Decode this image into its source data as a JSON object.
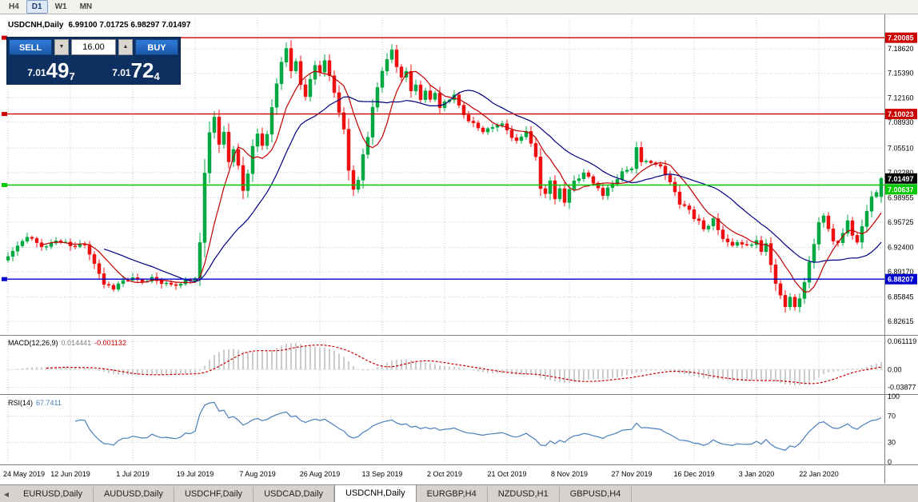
{
  "toolbar": {
    "timeframes": [
      "H4",
      "D1",
      "W1",
      "MN"
    ],
    "active_timeframe": "D1"
  },
  "header": {
    "title": "USDCNH,Daily",
    "ohlc_text": "6.99100 7.01725 6.98297 7.01497"
  },
  "trade_panel": {
    "sell_label": "SELL",
    "buy_label": "BUY",
    "volume": "16.00",
    "sell_price": {
      "small": "7.01",
      "big": "49",
      "sup": "7"
    },
    "buy_price": {
      "small": "7.01",
      "big": "72",
      "sup": "4"
    }
  },
  "icons": {
    "spinner_down": "▼",
    "spinner_up": "▲",
    "tab_scroll_left": "◀"
  },
  "indicators": {
    "macd_name": "MACD(12,26,9)",
    "macd_value": "0.014441",
    "macd_signal": "-0.001132",
    "rsi_name": "RSI(14)",
    "rsi_value": "67.7411"
  },
  "tabs": {
    "items": [
      "EURUSD,Daily",
      "AUDUSD,Daily",
      "USDCHF,Daily",
      "USDCAD,Daily",
      "USDCNH,Daily",
      "EURGBP,H4",
      "NZDUSD,H1",
      "GBPUSD,H4"
    ],
    "active": "USDCNH,Daily"
  },
  "colors": {
    "bull": "#00a843",
    "bear": "#ee1111",
    "ma_fast": "#c00000",
    "ma_slow": "#000080",
    "macd_hist": "#999999",
    "macd_signal": "#cc0000",
    "rsi_line": "#4a7ebb",
    "grid": "#c9c9c9",
    "panel_border": "#808080",
    "level_red": "#cc0000",
    "level_green": "#00c800",
    "level_blue": "#0000cc",
    "current_box": "#000000"
  },
  "chart_data": {
    "type": "candlestick",
    "symbol": "USDCNH",
    "timeframe": "Daily",
    "last_ohlc": {
      "open": 6.991,
      "high": 7.01725,
      "low": 6.98297,
      "close": 7.01497
    },
    "ylim": [
      6.8095,
      7.2275
    ],
    "price_ticks": [
      {
        "v": 7.1862,
        "label": "7.18620"
      },
      {
        "v": 7.1539,
        "label": "7.15390"
      },
      {
        "v": 7.1216,
        "label": "7.12160"
      },
      {
        "v": 7.0893,
        "label": "7.08930"
      },
      {
        "v": 7.0551,
        "label": "7.05510"
      },
      {
        "v": 7.0228,
        "label": "7.02280"
      },
      {
        "v": 6.98955,
        "label": "6.98955"
      },
      {
        "v": 6.95725,
        "label": "6.95725"
      },
      {
        "v": 6.924,
        "label": "6.92400"
      },
      {
        "v": 6.8917,
        "label": "6.89170"
      },
      {
        "v": 6.85845,
        "label": "6.85845"
      },
      {
        "v": 6.82615,
        "label": "6.82615"
      }
    ],
    "levels": [
      {
        "price": 7.20085,
        "label": "7.20085",
        "color": "#cc0000"
      },
      {
        "price": 7.10023,
        "label": "7.10023",
        "color": "#cc0000"
      },
      {
        "price": 7.00637,
        "label": "7.00637",
        "color": "#00c800"
      },
      {
        "price": 6.88207,
        "label": "6.88207",
        "color": "#0000cc"
      }
    ],
    "current_price": {
      "value": 7.01497,
      "label": "7.01497"
    },
    "x_ticks": [
      "24 May 2019",
      "12 Jun 2019",
      "1 Jul 2019",
      "19 Jul 2019",
      "7 Aug 2019",
      "26 Aug 2019",
      "13 Sep 2019",
      "2 Oct 2019",
      "21 Oct 2019",
      "8 Nov 2019",
      "27 Nov 2019",
      "16 Dec 2019",
      "3 Jan 2020",
      "22 Jan 2020"
    ],
    "bars_per_tick": 13,
    "candle_count": 183,
    "noise_seed": 11,
    "noise_amp": 0.0032,
    "clamp_high": 7.198,
    "clamp_low": 6.836,
    "ma": [
      {
        "period": 8,
        "color": "#c00000"
      },
      {
        "period": 21,
        "color": "#000080"
      }
    ],
    "close_waypoints": [
      [
        0,
        6.912
      ],
      [
        2,
        6.926
      ],
      [
        4,
        6.937
      ],
      [
        6,
        6.93
      ],
      [
        8,
        6.925
      ],
      [
        10,
        6.933
      ],
      [
        12,
        6.929
      ],
      [
        14,
        6.924
      ],
      [
        16,
        6.93
      ],
      [
        18,
        6.904
      ],
      [
        20,
        6.876
      ],
      [
        22,
        6.871
      ],
      [
        24,
        6.88
      ],
      [
        26,
        6.882
      ],
      [
        28,
        6.877
      ],
      [
        30,
        6.884
      ],
      [
        32,
        6.879
      ],
      [
        34,
        6.872
      ],
      [
        36,
        6.878
      ],
      [
        38,
        6.881
      ],
      [
        39,
        6.883
      ],
      [
        40,
        6.93
      ],
      [
        41,
        7.02
      ],
      [
        42,
        7.078
      ],
      [
        43,
        7.094
      ],
      [
        44,
        7.058
      ],
      [
        45,
        7.077
      ],
      [
        46,
        7.04
      ],
      [
        47,
        7.056
      ],
      [
        48,
        7.03
      ],
      [
        49,
        6.999
      ],
      [
        50,
        7.021
      ],
      [
        51,
        7.059
      ],
      [
        52,
        7.074
      ],
      [
        53,
        7.057
      ],
      [
        54,
        7.076
      ],
      [
        55,
        7.108
      ],
      [
        56,
        7.143
      ],
      [
        57,
        7.169
      ],
      [
        58,
        7.186
      ],
      [
        59,
        7.154
      ],
      [
        60,
        7.17
      ],
      [
        61,
        7.139
      ],
      [
        62,
        7.124
      ],
      [
        63,
        7.149
      ],
      [
        64,
        7.163
      ],
      [
        65,
        7.156
      ],
      [
        66,
        7.169
      ],
      [
        67,
        7.152
      ],
      [
        68,
        7.128
      ],
      [
        69,
        7.103
      ],
      [
        70,
        7.078
      ],
      [
        71,
        7.028
      ],
      [
        72,
        7.003
      ],
      [
        73,
        7.012
      ],
      [
        74,
        7.046
      ],
      [
        75,
        7.072
      ],
      [
        76,
        7.11
      ],
      [
        77,
        7.136
      ],
      [
        78,
        7.154
      ],
      [
        79,
        7.17
      ],
      [
        80,
        7.184
      ],
      [
        81,
        7.163
      ],
      [
        82,
        7.146
      ],
      [
        83,
        7.156
      ],
      [
        84,
        7.131
      ],
      [
        85,
        7.14
      ],
      [
        86,
        7.119
      ],
      [
        87,
        7.134
      ],
      [
        88,
        7.117
      ],
      [
        89,
        7.129
      ],
      [
        90,
        7.109
      ],
      [
        91,
        7.119
      ],
      [
        93,
        7.124
      ],
      [
        95,
        7.099
      ],
      [
        97,
        7.088
      ],
      [
        99,
        7.074
      ],
      [
        101,
        7.082
      ],
      [
        103,
        7.087
      ],
      [
        104,
        7.079
      ],
      [
        106,
        7.064
      ],
      [
        108,
        7.074
      ],
      [
        110,
        7.046
      ],
      [
        111,
        7.004
      ],
      [
        112,
        6.994
      ],
      [
        113,
        7.009
      ],
      [
        114,
        6.989
      ],
      [
        115,
        6.999
      ],
      [
        116,
        6.984
      ],
      [
        117,
        6.999
      ],
      [
        118,
        7.011
      ],
      [
        120,
        7.024
      ],
      [
        122,
        7.009
      ],
      [
        124,
        6.994
      ],
      [
        126,
        7.009
      ],
      [
        128,
        7.024
      ],
      [
        130,
        7.03
      ],
      [
        131,
        7.054
      ],
      [
        132,
        7.034
      ],
      [
        134,
        7.039
      ],
      [
        136,
        7.029
      ],
      [
        138,
        7.009
      ],
      [
        140,
        6.984
      ],
      [
        142,
        6.974
      ],
      [
        143,
        6.964
      ],
      [
        145,
        6.951
      ],
      [
        147,
        6.959
      ],
      [
        149,
        6.934
      ],
      [
        151,
        6.924
      ],
      [
        153,
        6.931
      ],
      [
        155,
        6.927
      ],
      [
        156,
        6.934
      ],
      [
        157,
        6.919
      ],
      [
        158,
        6.929
      ],
      [
        159,
        6.904
      ],
      [
        160,
        6.879
      ],
      [
        161,
        6.861
      ],
      [
        162,
        6.847
      ],
      [
        163,
        6.859
      ],
      [
        164,
        6.844
      ],
      [
        165,
        6.857
      ],
      [
        166,
        6.879
      ],
      [
        167,
        6.904
      ],
      [
        168,
        6.929
      ],
      [
        169,
        6.954
      ],
      [
        170,
        6.967
      ],
      [
        171,
        6.949
      ],
      [
        172,
        6.934
      ],
      [
        173,
        6.929
      ],
      [
        174,
        6.944
      ],
      [
        175,
        6.959
      ],
      [
        176,
        6.939
      ],
      [
        177,
        6.934
      ],
      [
        178,
        6.954
      ],
      [
        179,
        6.974
      ],
      [
        180,
        6.989
      ],
      [
        181,
        6.999
      ],
      [
        182,
        7.015
      ]
    ],
    "macd": {
      "params": [
        12,
        26,
        9
      ],
      "value": 0.014441,
      "signal": -0.001132,
      "ylim": [
        -0.05,
        0.072
      ],
      "axis_ticks": [
        {
          "v": 0.061119,
          "label": "0.061119"
        },
        {
          "v": 0,
          "label": "0.00"
        },
        {
          "v": -0.03877,
          "label": "-0.03877"
        }
      ]
    },
    "rsi": {
      "period": 14,
      "value": 67.7411,
      "ylim": [
        0,
        100
      ],
      "axis_ticks": [
        100,
        70,
        30,
        0
      ],
      "level_lines": [
        70,
        30
      ]
    }
  }
}
